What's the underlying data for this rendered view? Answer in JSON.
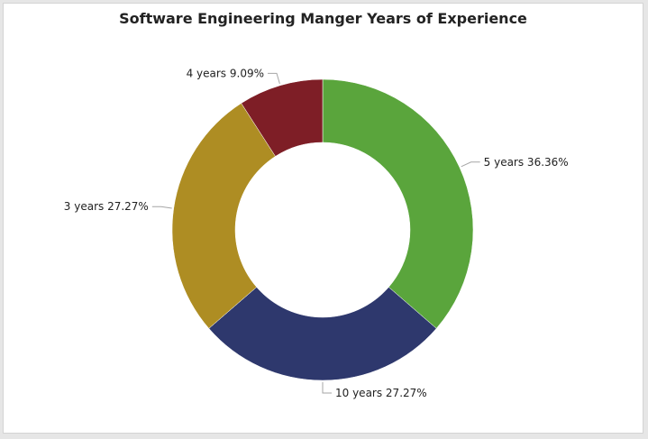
{
  "chart_data": {
    "type": "pie",
    "donut": true,
    "title": "Software Engineering Manger Years of Experience",
    "slices": [
      {
        "label": "5 years",
        "value": 36.36,
        "display": "5 years 36.36%",
        "color": "#5aa53c"
      },
      {
        "label": "10 years",
        "value": 27.27,
        "display": "10 years 27.27%",
        "color": "#2e386d"
      },
      {
        "label": "3 years",
        "value": 27.27,
        "display": "3 years 27.27%",
        "color": "#ae8d23"
      },
      {
        "label": "4 years",
        "value": 9.09,
        "display": "4 years 9.09%",
        "color": "#7e1e26"
      }
    ]
  }
}
